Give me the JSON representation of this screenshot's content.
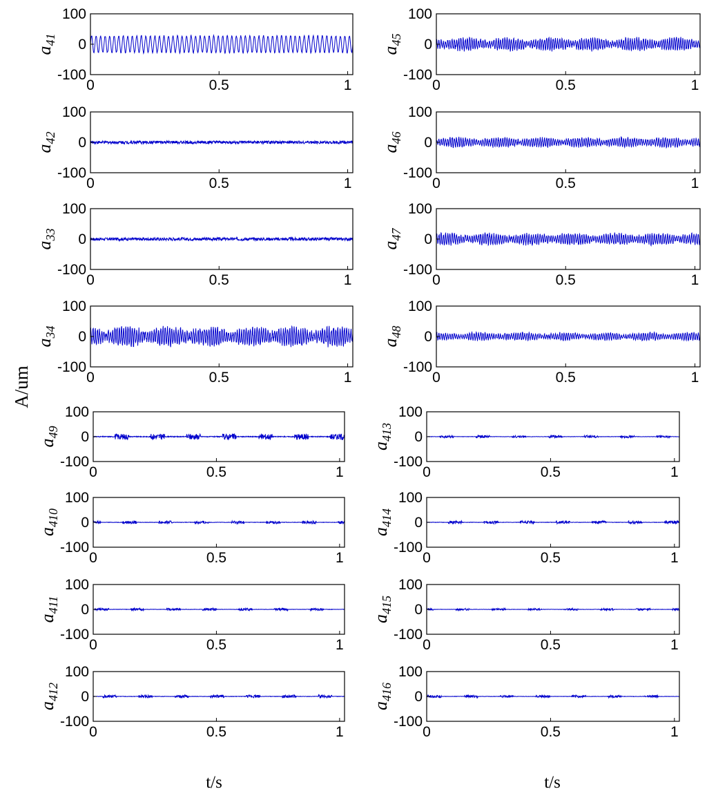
{
  "figure": {
    "ylabel": "A/um",
    "xlabels": [
      "t/s",
      "t/s"
    ]
  },
  "chart_data": [
    {
      "type": "line",
      "ylabel_base": "a",
      "ylabel_sub": "41",
      "xticks": [
        "0",
        "0.5",
        "1"
      ],
      "yticks": [
        "100",
        "0",
        "-100"
      ],
      "xlim": [
        0,
        1.02
      ],
      "ylim": [
        -100,
        100
      ],
      "series": [
        {
          "envelope": 30,
          "pattern": "sinusoid",
          "color": "#0000cc"
        }
      ]
    },
    {
      "type": "line",
      "ylabel_base": "a",
      "ylabel_sub": "42",
      "xticks": [
        "0",
        "0.5",
        "1"
      ],
      "yticks": [
        "100",
        "0",
        "-100"
      ],
      "xlim": [
        0,
        1.02
      ],
      "ylim": [
        -100,
        100
      ],
      "series": [
        {
          "envelope": 5,
          "pattern": "noise",
          "color": "#0000cc"
        }
      ]
    },
    {
      "type": "line",
      "ylabel_base": "a",
      "ylabel_sub": "33",
      "xticks": [
        "0",
        "0.5",
        "1"
      ],
      "yticks": [
        "100",
        "0",
        "-100"
      ],
      "xlim": [
        0,
        1.02
      ],
      "ylim": [
        -100,
        100
      ],
      "series": [
        {
          "envelope": 5,
          "pattern": "noise",
          "color": "#0000cc"
        }
      ]
    },
    {
      "type": "line",
      "ylabel_base": "a",
      "ylabel_sub": "34",
      "xticks": [
        "0",
        "0.5",
        "1"
      ],
      "yticks": [
        "100",
        "0",
        "-100"
      ],
      "xlim": [
        0,
        1.02
      ],
      "ylim": [
        -100,
        100
      ],
      "series": [
        {
          "envelope": 30,
          "pattern": "modulated",
          "color": "#0000cc"
        }
      ]
    },
    {
      "type": "line",
      "ylabel_base": "a",
      "ylabel_sub": "49",
      "xticks": [
        "0",
        "0.5",
        "1"
      ],
      "yticks": [
        "100",
        "0",
        "-100"
      ],
      "xlim": [
        0,
        1.02
      ],
      "ylim": [
        -100,
        100
      ],
      "series": [
        {
          "envelope": 12,
          "pattern": "bursts",
          "color": "#0000cc"
        }
      ]
    },
    {
      "type": "line",
      "ylabel_base": "a",
      "ylabel_sub": "410",
      "xticks": [
        "0",
        "0.5",
        "1"
      ],
      "yticks": [
        "100",
        "0",
        "-100"
      ],
      "xlim": [
        0,
        1.02
      ],
      "ylim": [
        -100,
        100
      ],
      "series": [
        {
          "envelope": 6,
          "pattern": "bursts",
          "color": "#0000cc"
        }
      ]
    },
    {
      "type": "line",
      "ylabel_base": "a",
      "ylabel_sub": "411",
      "xticks": [
        "0",
        "0.5",
        "1"
      ],
      "yticks": [
        "100",
        "0",
        "-100"
      ],
      "xlim": [
        0,
        1.02
      ],
      "ylim": [
        -100,
        100
      ],
      "series": [
        {
          "envelope": 5,
          "pattern": "bursts",
          "color": "#0000cc"
        }
      ]
    },
    {
      "type": "line",
      "ylabel_base": "a",
      "ylabel_sub": "412",
      "xticks": [
        "0",
        "0.5",
        "1"
      ],
      "yticks": [
        "100",
        "0",
        "-100"
      ],
      "xlim": [
        0,
        1.02
      ],
      "ylim": [
        -100,
        100
      ],
      "series": [
        {
          "envelope": 6,
          "pattern": "bursts",
          "color": "#0000cc"
        }
      ]
    },
    {
      "type": "line",
      "ylabel_base": "a",
      "ylabel_sub": "45",
      "xticks": [
        "0",
        "0.5",
        "1"
      ],
      "yticks": [
        "100",
        "0",
        "-100"
      ],
      "xlim": [
        0,
        1.02
      ],
      "ylim": [
        -100,
        100
      ],
      "series": [
        {
          "envelope": 20,
          "pattern": "modulated",
          "color": "#0000cc"
        }
      ]
    },
    {
      "type": "line",
      "ylabel_base": "a",
      "ylabel_sub": "46",
      "xticks": [
        "0",
        "0.5",
        "1"
      ],
      "yticks": [
        "100",
        "0",
        "-100"
      ],
      "xlim": [
        0,
        1.02
      ],
      "ylim": [
        -100,
        100
      ],
      "series": [
        {
          "envelope": 15,
          "pattern": "modulated",
          "color": "#0000cc"
        }
      ]
    },
    {
      "type": "line",
      "ylabel_base": "a",
      "ylabel_sub": "47",
      "xticks": [
        "0",
        "0.5",
        "1"
      ],
      "yticks": [
        "100",
        "0",
        "-100"
      ],
      "xlim": [
        0,
        1.02
      ],
      "ylim": [
        -100,
        100
      ],
      "series": [
        {
          "envelope": 18,
          "pattern": "modulated",
          "color": "#0000cc"
        }
      ]
    },
    {
      "type": "line",
      "ylabel_base": "a",
      "ylabel_sub": "48",
      "xticks": [
        "0",
        "0.5",
        "1"
      ],
      "yticks": [
        "100",
        "0",
        "-100"
      ],
      "xlim": [
        0,
        1.02
      ],
      "ylim": [
        -100,
        100
      ],
      "series": [
        {
          "envelope": 12,
          "pattern": "modulated",
          "color": "#0000cc"
        }
      ]
    },
    {
      "type": "line",
      "ylabel_base": "a",
      "ylabel_sub": "413",
      "xticks": [
        "0",
        "0.5",
        "1"
      ],
      "yticks": [
        "100",
        "0",
        "-100"
      ],
      "xlim": [
        0,
        1.02
      ],
      "ylim": [
        -100,
        100
      ],
      "series": [
        {
          "envelope": 5,
          "pattern": "bursts",
          "color": "#0000cc"
        }
      ]
    },
    {
      "type": "line",
      "ylabel_base": "a",
      "ylabel_sub": "414",
      "xticks": [
        "0",
        "0.5",
        "1"
      ],
      "yticks": [
        "100",
        "0",
        "-100"
      ],
      "xlim": [
        0,
        1.02
      ],
      "ylim": [
        -100,
        100
      ],
      "series": [
        {
          "envelope": 6,
          "pattern": "bursts",
          "color": "#0000cc"
        }
      ]
    },
    {
      "type": "line",
      "ylabel_base": "a",
      "ylabel_sub": "415",
      "xticks": [
        "0",
        "0.5",
        "1"
      ],
      "yticks": [
        "100",
        "0",
        "-100"
      ],
      "xlim": [
        0,
        1.02
      ],
      "ylim": [
        -100,
        100
      ],
      "series": [
        {
          "envelope": 4,
          "pattern": "bursts",
          "color": "#0000cc"
        }
      ]
    },
    {
      "type": "line",
      "ylabel_base": "a",
      "ylabel_sub": "416",
      "xticks": [
        "0",
        "0.5",
        "1"
      ],
      "yticks": [
        "100",
        "0",
        "-100"
      ],
      "xlim": [
        0,
        1.02
      ],
      "ylim": [
        -100,
        100
      ],
      "series": [
        {
          "envelope": 5,
          "pattern": "bursts",
          "color": "#0000cc"
        }
      ]
    }
  ]
}
